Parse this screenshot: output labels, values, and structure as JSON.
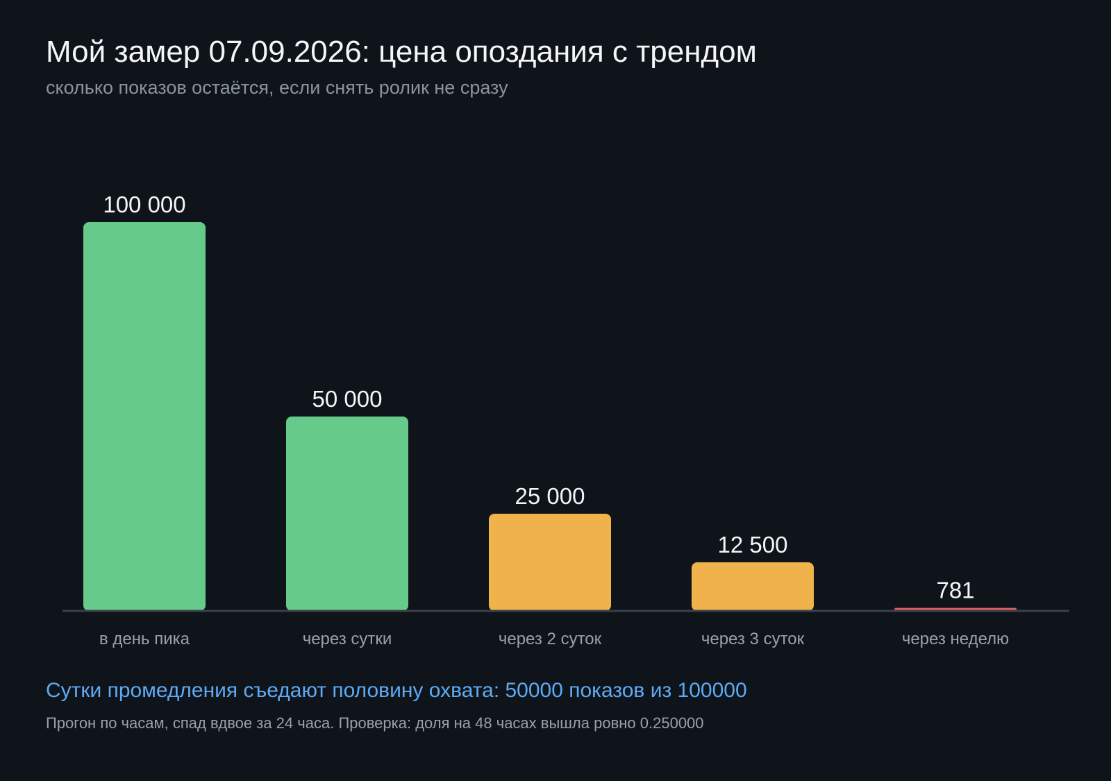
{
  "header": {
    "title": "Мой замер 07.09.2026: цена опоздания с трендом",
    "subtitle": "сколько показов остаётся, если снять ролик не сразу"
  },
  "chart_data": {
    "type": "bar",
    "categories": [
      "в день пика",
      "через сутки",
      "через 2 суток",
      "через 3 суток",
      "через неделю"
    ],
    "values": [
      100000,
      50000,
      25000,
      12500,
      781
    ],
    "value_labels": [
      "100 000",
      "50 000",
      "25 000",
      "12 500",
      "781"
    ],
    "colors": [
      "#66ca8a",
      "#66ca8a",
      "#f0b24a",
      "#f0b24a",
      "#e05d5d"
    ],
    "ylim": [
      0,
      100000
    ],
    "grid": false,
    "axis_color": "#3a414b"
  },
  "footer": {
    "headline": "Сутки промедления съедают половину охвата: 50000 показов из 100000",
    "note": "Прогон по часам, спад вдвое за 24 часа. Проверка: доля на 48 часах вышла ровно 0.250000"
  }
}
